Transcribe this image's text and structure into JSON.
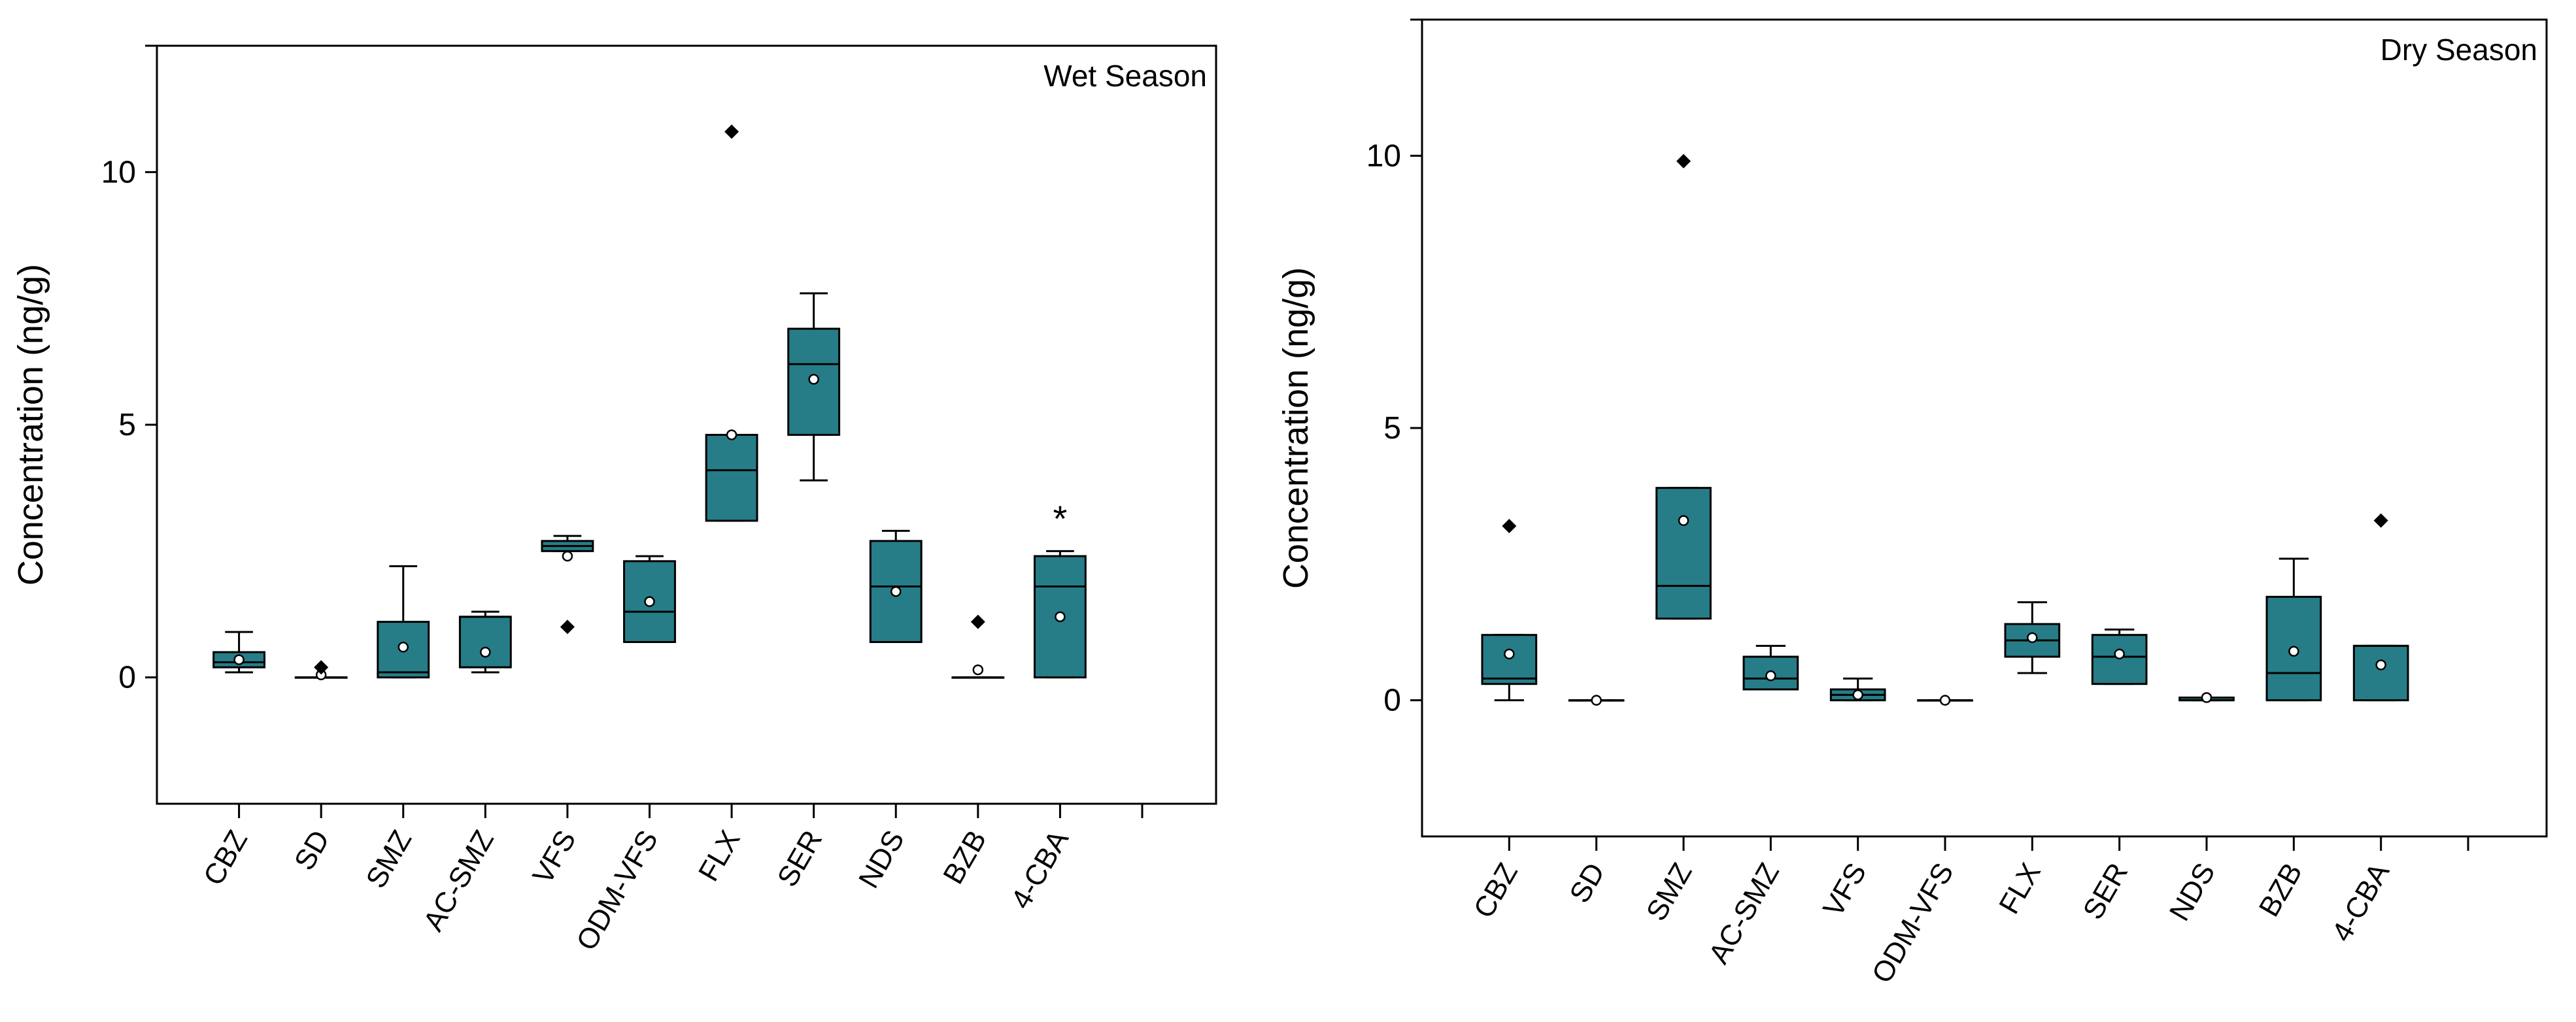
{
  "colors": {
    "box_fill": "#267D87",
    "stroke": "#000000"
  },
  "chart_data": [
    {
      "type": "box",
      "title": "Wet Season",
      "ylabel": "Concentration (ng/g)",
      "xlabel": "",
      "ylim": [
        -2.5,
        12.5
      ],
      "yticks": [
        0,
        5,
        10
      ],
      "grid": false,
      "categories": [
        "CBZ",
        "SD",
        "SMZ",
        "AC-SMZ",
        "VFS",
        "ODM-VFS",
        "FLX",
        "SER",
        "NDS",
        "BZB",
        "4-CBA"
      ],
      "boxes": [
        {
          "whisker_low": 0.1,
          "q1": 0.2,
          "median": 0.3,
          "q3": 0.5,
          "whisker_high": 0.9,
          "mean": 0.35,
          "outliers": []
        },
        {
          "whisker_low": 0.0,
          "q1": 0.0,
          "median": 0.0,
          "q3": 0.0,
          "whisker_high": 0.0,
          "mean": 0.05,
          "outliers": [
            {
              "value": 0.2,
              "marker": "diamond"
            }
          ]
        },
        {
          "whisker_low": 0.0,
          "q1": 0.0,
          "median": 0.1,
          "q3": 1.1,
          "whisker_high": 2.2,
          "mean": 0.6,
          "outliers": []
        },
        {
          "whisker_low": 0.1,
          "q1": 0.2,
          "median": 1.2,
          "q3": 1.2,
          "whisker_high": 1.3,
          "mean": 0.5,
          "outliers": []
        },
        {
          "whisker_low": 2.5,
          "q1": 2.5,
          "median": 2.6,
          "q3": 2.7,
          "whisker_high": 2.8,
          "mean": 2.4,
          "outliers": [
            {
              "value": 1.0,
              "marker": "diamond"
            }
          ]
        },
        {
          "whisker_low": 0.7,
          "q1": 0.7,
          "median": 1.3,
          "q3": 2.3,
          "whisker_high": 2.4,
          "mean": 1.5,
          "outliers": []
        },
        {
          "whisker_low": 3.1,
          "q1": 3.1,
          "median": 4.1,
          "q3": 4.8,
          "whisker_high": 4.8,
          "mean": 4.8,
          "outliers": [
            {
              "value": 10.8,
              "marker": "diamond"
            }
          ]
        },
        {
          "whisker_low": 3.9,
          "q1": 4.8,
          "median": 6.2,
          "q3": 6.9,
          "whisker_high": 7.6,
          "mean": 5.9,
          "outliers": []
        },
        {
          "whisker_low": 0.7,
          "q1": 0.7,
          "median": 1.8,
          "q3": 2.7,
          "whisker_high": 2.9,
          "mean": 1.7,
          "outliers": []
        },
        {
          "whisker_low": 0.0,
          "q1": 0.0,
          "median": 0.0,
          "q3": 0.0,
          "whisker_high": 0.0,
          "mean": 0.15,
          "outliers": [
            {
              "value": 1.1,
              "marker": "diamond"
            }
          ]
        },
        {
          "whisker_low": 0.0,
          "q1": 0.0,
          "median": 1.8,
          "q3": 2.4,
          "whisker_high": 2.5,
          "mean": 1.2,
          "outliers": [
            {
              "value": 3.2,
              "marker": "star"
            }
          ]
        }
      ]
    },
    {
      "type": "box",
      "title": "Dry Season",
      "ylabel": "Concentration (ng/g)",
      "xlabel": "",
      "ylim": [
        -2.5,
        12.5
      ],
      "yticks": [
        0,
        5,
        10
      ],
      "grid": false,
      "categories": [
        "CBZ",
        "SD",
        "SMZ",
        "AC-SMZ",
        "VFS",
        "ODM-VFS",
        "FLX",
        "SER",
        "NDS",
        "BZB",
        "4-CBA"
      ],
      "boxes": [
        {
          "whisker_low": 0.0,
          "q1": 0.3,
          "median": 0.4,
          "q3": 1.2,
          "whisker_high": 1.2,
          "mean": 0.85,
          "outliers": [
            {
              "value": 3.2,
              "marker": "diamond"
            }
          ]
        },
        {
          "whisker_low": 0.0,
          "q1": 0.0,
          "median": 0.0,
          "q3": 0.0,
          "whisker_high": 0.0,
          "mean": 0.0,
          "outliers": []
        },
        {
          "whisker_low": 1.5,
          "q1": 1.5,
          "median": 2.1,
          "q3": 3.9,
          "whisker_high": 3.9,
          "mean": 3.3,
          "outliers": [
            {
              "value": 9.9,
              "marker": "diamond"
            }
          ]
        },
        {
          "whisker_low": 0.2,
          "q1": 0.2,
          "median": 0.4,
          "q3": 0.8,
          "whisker_high": 1.0,
          "mean": 0.45,
          "outliers": []
        },
        {
          "whisker_low": 0.0,
          "q1": 0.0,
          "median": 0.1,
          "q3": 0.2,
          "whisker_high": 0.4,
          "mean": 0.1,
          "outliers": []
        },
        {
          "whisker_low": 0.0,
          "q1": 0.0,
          "median": 0.0,
          "q3": 0.0,
          "whisker_high": 0.0,
          "mean": 0.0,
          "outliers": []
        },
        {
          "whisker_low": 0.5,
          "q1": 0.8,
          "median": 1.1,
          "q3": 1.4,
          "whisker_high": 1.8,
          "mean": 1.15,
          "outliers": []
        },
        {
          "whisker_low": 0.3,
          "q1": 0.3,
          "median": 0.8,
          "q3": 1.2,
          "whisker_high": 1.3,
          "mean": 0.85,
          "outliers": []
        },
        {
          "whisker_low": 0.0,
          "q1": 0.0,
          "median": 0.0,
          "q3": 0.05,
          "whisker_high": 0.05,
          "mean": 0.05,
          "outliers": []
        },
        {
          "whisker_low": 0.0,
          "q1": 0.0,
          "median": 0.5,
          "q3": 1.9,
          "whisker_high": 2.6,
          "mean": 0.9,
          "outliers": []
        },
        {
          "whisker_low": 0.0,
          "q1": 0.0,
          "median": 1.0,
          "q3": 1.0,
          "whisker_high": 1.0,
          "mean": 0.65,
          "outliers": [
            {
              "value": 3.3,
              "marker": "diamond"
            }
          ]
        }
      ]
    }
  ]
}
